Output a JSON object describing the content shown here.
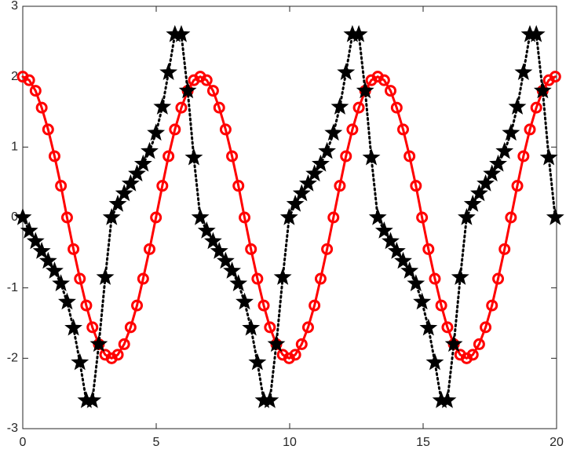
{
  "chart_data": {
    "type": "line",
    "x": [
      0,
      0.24,
      0.48,
      0.71,
      0.95,
      1.19,
      1.43,
      1.66,
      1.9,
      2.14,
      2.38,
      2.61,
      2.85,
      3.09,
      3.33,
      3.56,
      3.8,
      4.04,
      4.28,
      4.51,
      4.75,
      4.99,
      5.23,
      5.46,
      5.7,
      5.94,
      6.18,
      6.41,
      6.65,
      6.89,
      7.13,
      7.36,
      7.6,
      7.84,
      8.08,
      8.31,
      8.55,
      8.79,
      9.03,
      9.26,
      9.5,
      9.74,
      9.98,
      10.21,
      10.45,
      10.69,
      10.93,
      11.16,
      11.4,
      11.64,
      11.88,
      12.11,
      12.35,
      12.59,
      12.83,
      13.06,
      13.3,
      13.54,
      13.78,
      14.01,
      14.25,
      14.49,
      14.73,
      14.96,
      15.2,
      15.44,
      15.68,
      15.91,
      16.15,
      16.39,
      16.63,
      16.86,
      17.1,
      17.34,
      17.58,
      17.81,
      18.05,
      18.29,
      18.53,
      18.76,
      19.0,
      19.24,
      19.48,
      19.71,
      19.95
    ],
    "series": [
      {
        "color": "#ff0000",
        "line": "solid",
        "marker": "circle",
        "values": [
          2,
          1.95,
          1.8,
          1.56,
          1.25,
          0.87,
          0.45,
          0,
          -0.45,
          -0.87,
          -1.25,
          -1.56,
          -1.8,
          -1.95,
          -2,
          -1.95,
          -1.8,
          -1.56,
          -1.25,
          -0.87,
          -0.45,
          0,
          0.45,
          0.87,
          1.25,
          1.56,
          1.8,
          1.95,
          2,
          1.95,
          1.8,
          1.56,
          1.25,
          0.87,
          0.45,
          0,
          -0.45,
          -0.87,
          -1.25,
          -1.56,
          -1.8,
          -1.95,
          -2,
          -1.95,
          -1.8,
          -1.56,
          -1.25,
          -0.87,
          -0.45,
          0,
          0.45,
          0.87,
          1.25,
          1.56,
          1.8,
          1.95,
          2,
          1.95,
          1.8,
          1.56,
          1.25,
          0.87,
          0.45,
          0,
          -0.45,
          -0.87,
          -1.25,
          -1.56,
          -1.8,
          -1.95,
          -2,
          -1.95,
          -1.8,
          -1.56,
          -1.25,
          -0.87,
          -0.45,
          0,
          0.45,
          0.87,
          1.25,
          1.56,
          1.8,
          1.95,
          2
        ]
      },
      {
        "color": "#000000",
        "line": "dotted",
        "marker": "star",
        "values": [
          0,
          -0.19,
          -0.34,
          -0.48,
          -0.62,
          -0.76,
          -0.94,
          -1.2,
          -1.57,
          -2.06,
          -2.6,
          -2.6,
          -1.8,
          -0.85,
          0,
          0.19,
          0.34,
          0.48,
          0.62,
          0.76,
          0.94,
          1.2,
          1.57,
          2.06,
          2.6,
          2.6,
          1.8,
          0.85,
          0,
          -0.19,
          -0.34,
          -0.48,
          -0.62,
          -0.76,
          -0.94,
          -1.2,
          -1.57,
          -2.06,
          -2.6,
          -2.6,
          -1.8,
          -0.85,
          0,
          0.19,
          0.34,
          0.48,
          0.62,
          0.76,
          0.94,
          1.2,
          1.57,
          2.06,
          2.6,
          2.6,
          1.8,
          0.85,
          0,
          -0.19,
          -0.34,
          -0.48,
          -0.62,
          -0.76,
          -0.94,
          -1.2,
          -1.57,
          -2.06,
          -2.6,
          -2.6,
          -1.8,
          -0.85,
          0,
          0.19,
          0.34,
          0.48,
          0.62,
          0.76,
          0.94,
          1.2,
          1.57,
          2.06,
          2.6,
          2.6,
          1.8,
          0.85,
          0
        ]
      }
    ],
    "xlim": [
      0,
      20
    ],
    "xticks": [
      0,
      5,
      10,
      15,
      20
    ],
    "ylim": [
      -3,
      3
    ],
    "yticks": [
      -3,
      -2,
      -1,
      0,
      1,
      2,
      3
    ]
  }
}
